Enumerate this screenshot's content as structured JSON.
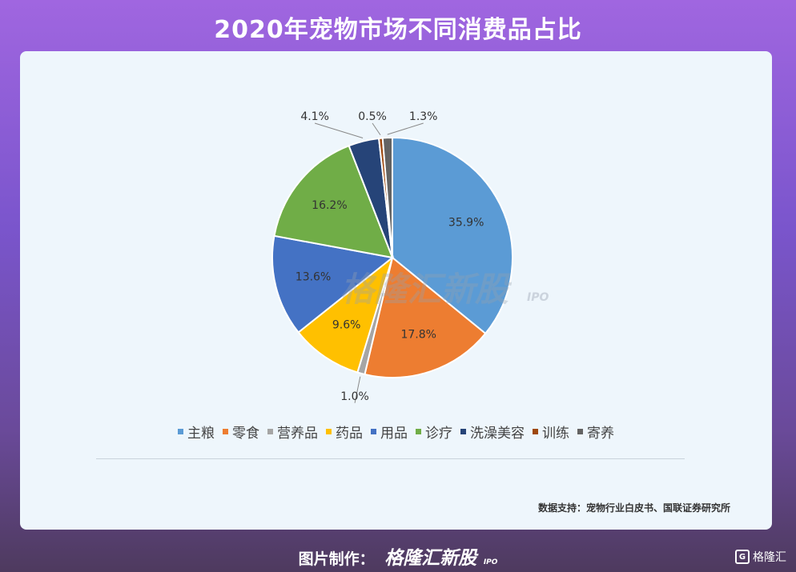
{
  "page": {
    "title": "2020年宠物市场不同消费品占比",
    "source": "数据支持：宠物行业白皮书、国联证券研究所",
    "footer_prefix": "图片制作：",
    "footer_brand": "格隆汇新股",
    "footer_ipo": "IPO",
    "corner_logo_icon": "G",
    "corner_logo_text": "格隆汇",
    "watermark_text": "格隆汇新股",
    "watermark_ipo": "IPO"
  },
  "chart_data": {
    "type": "pie",
    "title": "2020年宠物市场不同消费品占比",
    "categories": [
      "主粮",
      "零食",
      "营养品",
      "药品",
      "用品",
      "诊疗",
      "洗澡美容",
      "训练",
      "寄养"
    ],
    "values": [
      35.9,
      17.8,
      1.0,
      9.6,
      13.6,
      16.2,
      4.1,
      0.5,
      1.3
    ],
    "data_labels": [
      "35.9%",
      "17.8%",
      "1.0%",
      "9.6%",
      "13.6%",
      "16.2%",
      "4.1%",
      "0.5%",
      "1.3%"
    ],
    "colors": [
      "#5b9bd5",
      "#ed7d31",
      "#a5a5a5",
      "#ffc000",
      "#4472c4",
      "#70ad47",
      "#264478",
      "#9e480e",
      "#636363"
    ],
    "legend_position": "bottom",
    "start_angle": "12 o'clock",
    "direction": "clockwise"
  }
}
